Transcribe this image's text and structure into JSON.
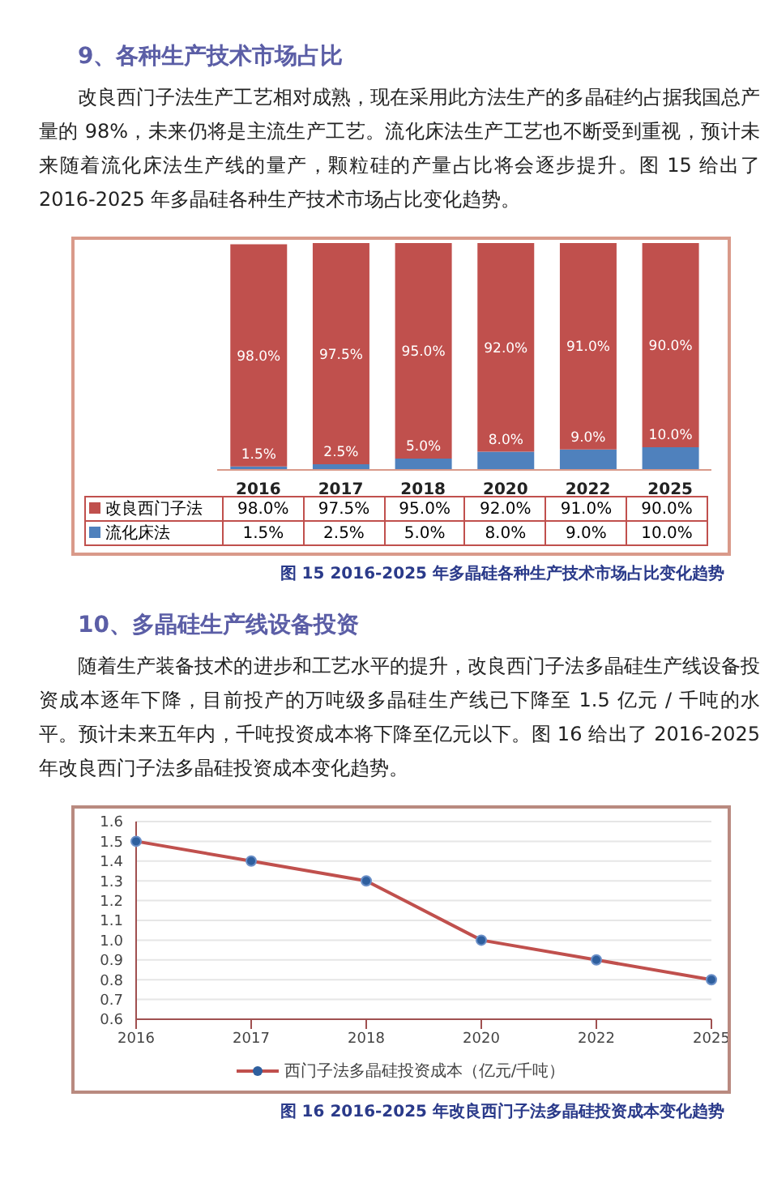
{
  "chart_data": [
    {
      "type": "bar",
      "title": "9、各种生产技术市场占比",
      "subtitle": "改良西门子法生产工艺相对成熟，现在采用此方法生产的多晶硅约占据我国总产量的 98%，未来仍将是主流生产工艺。流化床法生产工艺也不断受到重视，预计未来随着流化床法生产线的量产，颗粒硅的产量占比将会逐步提升。图 15 给出了 2016-2025 年多晶硅各种生产技术市场占比变化趋势。",
      "annotations": [
        "图 15 2016-2025 年多晶硅各种生产技术市场占比变化趋势"
      ],
      "categories": [
        "2016",
        "2017",
        "2018",
        "2020",
        "2022",
        "2025"
      ],
      "stacked": true,
      "legend": "bottom left",
      "series": [
        {
          "name": "流化床法",
          "color": "#4f81bd",
          "values": [
            1.5,
            2.5,
            5,
            8,
            9,
            10
          ],
          "value_labels": [
            "1.5%",
            "2.5%",
            "5.0%",
            "8.0%",
            "9.0%",
            "10.0%"
          ]
        },
        {
          "name": "改良西门子法",
          "color": "#c0504d",
          "values": [
            98,
            97.5,
            95,
            92,
            91,
            90
          ],
          "value_labels": [
            "98.0%",
            "97.5%",
            "95.0%",
            "92.0%",
            "91.0%",
            "90.0%"
          ]
        }
      ]
    },
    {
      "type": "line",
      "title": "10、多晶硅生产线设备投资",
      "subtitle": "随着生产装备技术的进步和工艺水平的提升，改良西门子法多晶硅生产线设备投资成本逐年下降，目前投产的万吨级多晶硅生产线已下降至 1.5 亿元 / 千吨的水平。预计未来五年内，千吨投资成本将下降至亿元以下。图 16 给出了 2016-2025 年改良西门子法多晶硅投资成本变化趋势。",
      "annotations": [
        "图 16 2016-2025 年改良西门子法多晶硅投资成本变化趋势"
      ],
      "categories": [
        "2016",
        "2017",
        "2018",
        "2020",
        "2022",
        "2025"
      ],
      "ylim": [
        0.6,
        1.6
      ],
      "yticks": [
        0.6,
        0.7,
        0.8,
        0.9,
        {
          "value": 1,
          "label": "1.0"
        },
        1.1,
        1.2,
        1.3,
        1.4,
        1.5,
        1.6
      ],
      "grid": "y",
      "legend": "bottom",
      "marker": "circle",
      "line_style": "solid",
      "series": [
        {
          "name": "西门子法多晶硅投资成本（亿元/千吨）",
          "color": "#c0504d",
          "values": [
            1.5,
            1.4,
            1.3,
            1,
            0.9,
            0.8
          ]
        }
      ]
    }
  ]
}
